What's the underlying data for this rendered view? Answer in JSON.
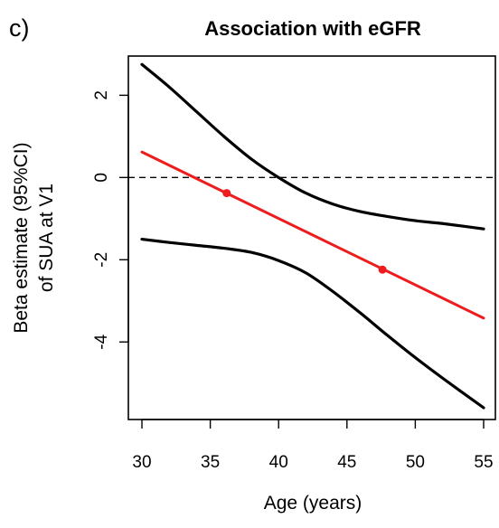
{
  "panel_label": "c)",
  "chart_data": {
    "type": "line",
    "title": "Association with eGFR",
    "xlabel": "Age (years)",
    "ylabel_lines": [
      "Beta estimate (95%CI)",
      "of SUA at V1"
    ],
    "xlim": [
      30,
      55
    ],
    "ylim": [
      -5.6,
      2.8
    ],
    "xticks": [
      30,
      35,
      40,
      45,
      50,
      55
    ],
    "yticks": [
      -4,
      -2,
      0,
      2
    ],
    "reference_line": {
      "y": 0,
      "style": "dashed"
    },
    "colors": {
      "estimate": "#ee1c1c",
      "ci": "#000000",
      "reference": "#000000"
    },
    "series": [
      {
        "role": "estimate",
        "x": [
          30,
          55
        ],
        "y": [
          0.62,
          -3.42
        ]
      },
      {
        "role": "upper-ci",
        "x": [
          30,
          32,
          34,
          36,
          38,
          40,
          42,
          44,
          46,
          48,
          50,
          52,
          55
        ],
        "y": [
          2.75,
          2.2,
          1.6,
          1.0,
          0.45,
          0.0,
          -0.38,
          -0.65,
          -0.83,
          -0.95,
          -1.05,
          -1.12,
          -1.25
        ]
      },
      {
        "role": "lower-ci",
        "x": [
          30,
          32,
          34,
          36,
          38,
          40,
          42,
          44,
          46,
          48,
          50,
          52,
          55
        ],
        "y": [
          -1.5,
          -1.58,
          -1.65,
          -1.72,
          -1.82,
          -2.02,
          -2.32,
          -2.78,
          -3.3,
          -3.85,
          -4.38,
          -4.88,
          -5.6
        ]
      }
    ],
    "points": [
      {
        "x": 36.2,
        "y": -0.38
      },
      {
        "x": 47.6,
        "y": -2.24
      }
    ]
  }
}
